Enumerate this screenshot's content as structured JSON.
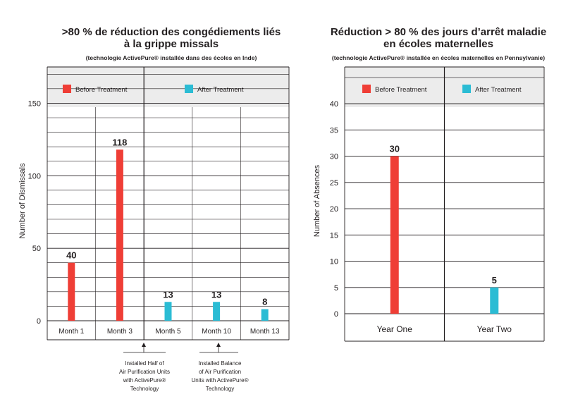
{
  "colors": {
    "before": "#ef3e36",
    "after": "#2bbcd4",
    "grid": "#231f20",
    "header_bg": "#ececec"
  },
  "chart_data": [
    {
      "type": "bar",
      "title_lines": [
        ">80 % de réduction des congédiements liés",
        "à la grippe missals"
      ],
      "subtitle": "(technologie ActivePure® installée dans des écoles en Inde)",
      "ylabel": "Number of Dismissals",
      "ylim": [
        0,
        175
      ],
      "yticks": [
        0,
        50,
        100,
        150
      ],
      "categories": [
        "Month 1",
        "Month 3",
        "Month 5",
        "Month 10",
        "Month 13"
      ],
      "series": [
        {
          "name": "Before Treatment",
          "values": [
            40,
            118,
            null,
            null,
            null
          ]
        },
        {
          "name": "After Treatment",
          "values": [
            null,
            null,
            13,
            13,
            8
          ]
        }
      ],
      "data_labels": [
        "40",
        "118",
        "13",
        "13",
        "8"
      ],
      "annotations": [
        {
          "after_category": "Month 3",
          "lines": [
            "Installed Half of",
            "Air Purification Units",
            "with ActivePure®",
            "Technology"
          ]
        },
        {
          "category": "Month 10",
          "lines": [
            "Installed Balance",
            "of Air Purification",
            "Units with ActivePure®",
            "Technology"
          ]
        }
      ],
      "grid": true,
      "legend_position": "top"
    },
    {
      "type": "bar",
      "title_lines": [
        "Réduction > 80 % des jours d’arrêt maladie",
        "en écoles maternelles"
      ],
      "subtitle": "(technologie ActivePure® installée en écoles maternelles en Pennsylvanie)",
      "ylabel": "Number of Absences",
      "ylim": [
        0,
        47
      ],
      "yticks": [
        0,
        5,
        10,
        15,
        20,
        25,
        30,
        35,
        40
      ],
      "categories": [
        "Year One",
        "Year Two"
      ],
      "series": [
        {
          "name": "Before Treatment",
          "values": [
            30,
            null
          ]
        },
        {
          "name": "After Treatment",
          "values": [
            null,
            5
          ]
        }
      ],
      "data_labels": [
        "30",
        "5"
      ],
      "grid": true,
      "legend_position": "top"
    }
  ]
}
